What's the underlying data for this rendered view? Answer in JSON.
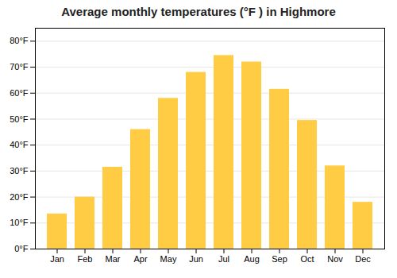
{
  "chart_data": {
    "type": "bar",
    "title": "Average monthly temperatures (°F ) in Highmore",
    "categories": [
      "Jan",
      "Feb",
      "Mar",
      "Apr",
      "May",
      "Jun",
      "Jul",
      "Aug",
      "Sep",
      "Oct",
      "Nov",
      "Dec"
    ],
    "values": [
      13.5,
      20.0,
      31.5,
      46.0,
      58.0,
      68.0,
      74.5,
      72.0,
      61.5,
      49.5,
      32.0,
      18.0
    ],
    "color": "#FFCC44",
    "ylim": [
      0,
      85
    ],
    "yticks": [
      {
        "value": 0,
        "label": "0°F"
      },
      {
        "value": 10,
        "label": "10°F"
      },
      {
        "value": 20,
        "label": "20°F"
      },
      {
        "value": 30,
        "label": "30°F"
      },
      {
        "value": 40,
        "label": "40°F"
      },
      {
        "value": 50,
        "label": "50°F"
      },
      {
        "value": 60,
        "label": "60°F"
      },
      {
        "value": 70,
        "label": "70°F"
      },
      {
        "value": 80,
        "label": "80°F"
      }
    ],
    "grid": true
  }
}
